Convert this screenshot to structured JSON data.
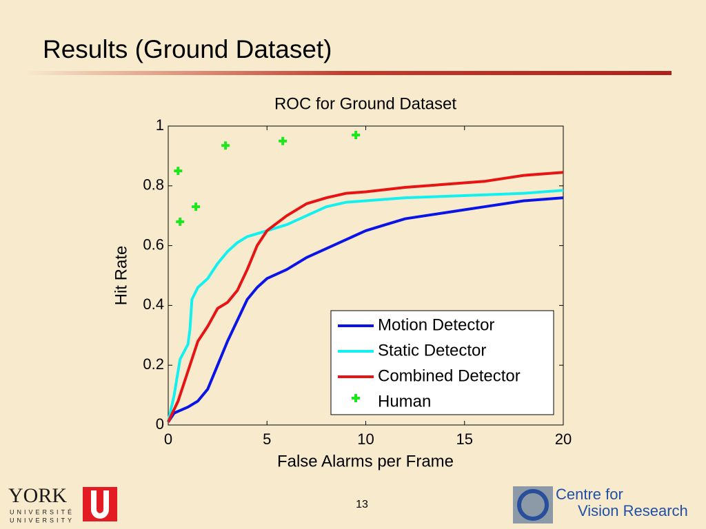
{
  "slide": {
    "title": "Results (Ground Dataset)"
  },
  "chart_data": {
    "type": "line",
    "title": "ROC for Ground Dataset",
    "x_label": "False Alarms per Frame",
    "y_label": "Hit Rate",
    "xlim": [
      0,
      20
    ],
    "ylim": [
      0,
      1
    ],
    "xticks": [
      0,
      5,
      10,
      15,
      20
    ],
    "yticks": [
      0,
      0.2,
      0.4,
      0.6,
      0.8,
      1
    ],
    "grid": false,
    "legend": "lower right",
    "series": [
      {
        "name": "Motion Detector",
        "color": "#0a14e6",
        "style": "line",
        "x": [
          0,
          0.3,
          1,
          1.5,
          2,
          2.5,
          3,
          3.5,
          4,
          4.5,
          5,
          6,
          7,
          8,
          9,
          10,
          11,
          12,
          13,
          14,
          15,
          16,
          17,
          18,
          19,
          20
        ],
        "values": [
          0.01,
          0.04,
          0.06,
          0.08,
          0.12,
          0.2,
          0.28,
          0.35,
          0.42,
          0.46,
          0.49,
          0.52,
          0.56,
          0.59,
          0.62,
          0.65,
          0.67,
          0.69,
          0.7,
          0.71,
          0.72,
          0.73,
          0.74,
          0.75,
          0.755,
          0.76
        ]
      },
      {
        "name": "Static Detector",
        "color": "#14f0f0",
        "style": "line",
        "x": [
          0,
          0.3,
          0.6,
          1,
          1.1,
          1.2,
          1.5,
          2,
          2.5,
          3,
          3.5,
          4,
          5,
          6,
          7,
          8,
          9,
          10,
          12,
          14,
          16,
          18,
          20
        ],
        "values": [
          0.01,
          0.1,
          0.22,
          0.27,
          0.32,
          0.42,
          0.46,
          0.49,
          0.54,
          0.58,
          0.61,
          0.63,
          0.65,
          0.67,
          0.7,
          0.73,
          0.745,
          0.75,
          0.76,
          0.765,
          0.77,
          0.775,
          0.785
        ]
      },
      {
        "name": "Combined Detector",
        "color": "#e61414",
        "style": "line",
        "x": [
          0,
          0.5,
          1,
          1.5,
          2,
          2.5,
          3,
          3.5,
          4,
          4.5,
          5,
          6,
          7,
          8,
          9,
          10,
          12,
          14,
          16,
          18,
          20
        ],
        "values": [
          0.01,
          0.08,
          0.18,
          0.28,
          0.33,
          0.39,
          0.41,
          0.45,
          0.52,
          0.6,
          0.65,
          0.7,
          0.74,
          0.76,
          0.775,
          0.78,
          0.795,
          0.805,
          0.815,
          0.835,
          0.845
        ]
      },
      {
        "name": "Human",
        "color": "#1ee61e",
        "style": "scatter",
        "x": [
          0.5,
          0.6,
          1.4,
          2.9,
          5.8,
          9.5
        ],
        "values": [
          0.85,
          0.68,
          0.73,
          0.935,
          0.95,
          0.97
        ]
      }
    ]
  },
  "footer": {
    "page_number": "13",
    "york_logo": [
      "YORK",
      "UNIVERSITÉ",
      "UNIVERSITY"
    ],
    "cvr_logo": [
      "Centre for",
      "Vision Research"
    ]
  }
}
